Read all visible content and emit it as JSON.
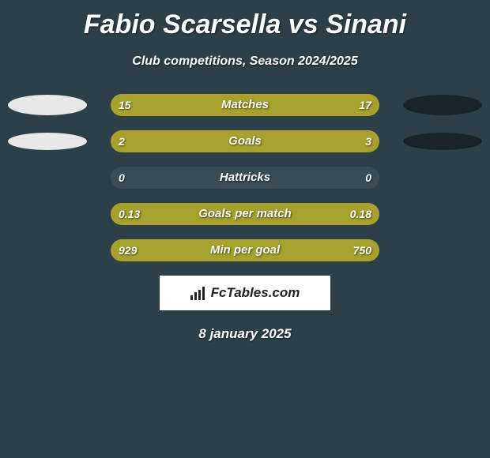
{
  "title": "Fabio Scarsella vs Sinani",
  "subtitle": "Club competitions, Season 2024/2025",
  "date": "8 january 2025",
  "logo_text": "FcTables.com",
  "colors": {
    "background": "#2d4047",
    "bar_left_color": "#a7a12e",
    "bar_right_color": "#a7a12e",
    "bar_bg": "#384d55",
    "shadow_left": "#e8e8e8",
    "shadow_right": "#1a2428",
    "text": "#ffffff"
  },
  "rows": [
    {
      "label": "Matches",
      "left_val": "15",
      "right_val": "17",
      "left_pct": 47,
      "right_pct": 53,
      "shadow_size": "big"
    },
    {
      "label": "Goals",
      "left_val": "2",
      "right_val": "3",
      "left_pct": 40,
      "right_pct": 60,
      "shadow_size": "small"
    },
    {
      "label": "Hattricks",
      "left_val": "0",
      "right_val": "0",
      "left_pct": 0,
      "right_pct": 0,
      "shadow_size": "none"
    },
    {
      "label": "Goals per match",
      "left_val": "0.13",
      "right_val": "0.18",
      "left_pct": 42,
      "right_pct": 58,
      "shadow_size": "none"
    },
    {
      "label": "Min per goal",
      "left_val": "929",
      "right_val": "750",
      "left_pct": 55,
      "right_pct": 45,
      "shadow_size": "none"
    }
  ]
}
